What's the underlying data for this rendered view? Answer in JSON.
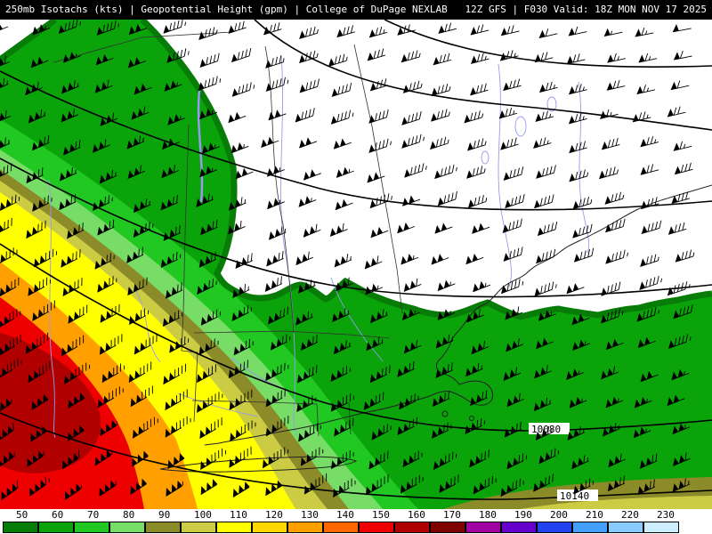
{
  "header": {
    "left": "250mb Isotachs (kts) | Geopotential Height (gpm) | College of DuPage NEXLAB",
    "right": "12Z GFS | F030 Valid: 18Z MON NOV 17 2025"
  },
  "contours": {
    "labels": [
      {
        "text": "10080"
      },
      {
        "text": "10140"
      }
    ]
  },
  "scale": {
    "values": [
      "50",
      "60",
      "70",
      "80",
      "90",
      "100",
      "110",
      "120",
      "130",
      "140",
      "150",
      "160",
      "170",
      "180",
      "190",
      "200",
      "210",
      "220",
      "230"
    ],
    "colors": [
      "#077d07",
      "#0aa30a",
      "#22c822",
      "#77dd66",
      "#8b8b2a",
      "#cccc44",
      "#ffff00",
      "#ffd700",
      "#ffa000",
      "#ff6600",
      "#ee0000",
      "#b00000",
      "#800000",
      "#a000a0",
      "#6600cc",
      "#2244ee",
      "#44a0ff",
      "#88ccff",
      "#cceeff"
    ]
  },
  "map_line_colors": {
    "river": "#9999ee",
    "border": "#333333",
    "contour": "#000000",
    "barb": "#000000"
  }
}
